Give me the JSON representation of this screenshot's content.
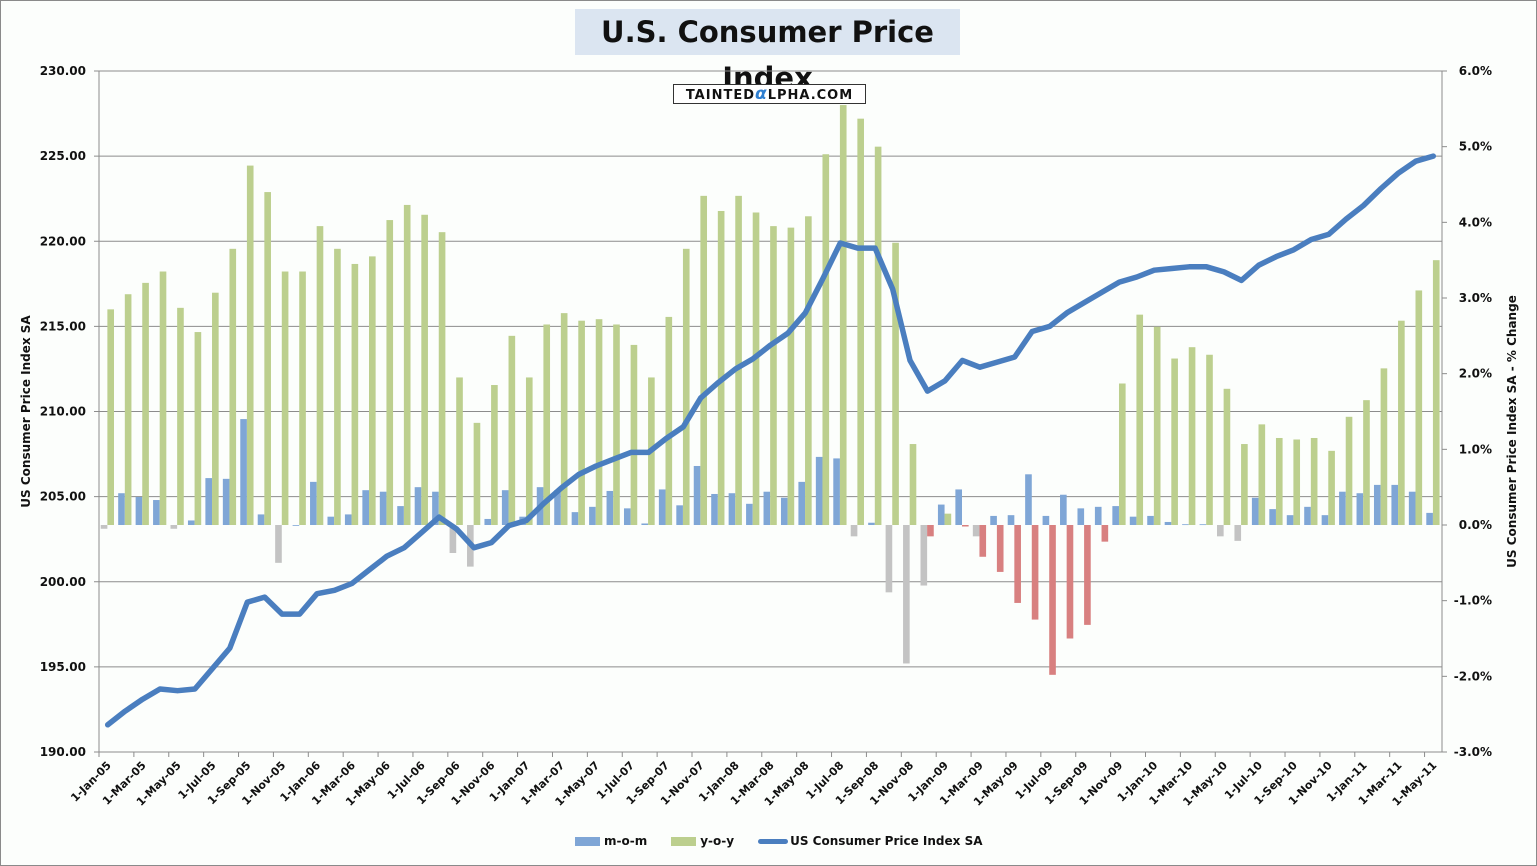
{
  "chart_data": {
    "type": "bar+line",
    "title": "U.S. Consumer Price Index",
    "watermark": "TAINTEDαLPHA.COM",
    "ylabel_left": "US Consumer Price Index SA",
    "ylabel_right": "US Consumer Price Index SA - % Change",
    "ylim_left": [
      190,
      230
    ],
    "ylim_right": [
      -3.0,
      6.0
    ],
    "left_ticks": [
      "190.00",
      "195.00",
      "200.00",
      "205.00",
      "210.00",
      "215.00",
      "220.00",
      "225.00",
      "230.00"
    ],
    "left_tick_values": [
      190,
      195,
      200,
      205,
      210,
      215,
      220,
      225,
      230
    ],
    "right_ticks": [
      "-3.0%",
      "-2.0%",
      "-1.0%",
      "0.0%",
      "1.0%",
      "2.0%",
      "3.0%",
      "4.0%",
      "5.0%",
      "6.0%"
    ],
    "right_tick_values": [
      -3,
      -2,
      -1,
      0,
      1,
      2,
      3,
      4,
      5,
      6
    ],
    "grid": true,
    "legend_position": "bottom",
    "x_tick_labels": [
      "1-Jan-05",
      "1-Mar-05",
      "1-May-05",
      "1-Jul-05",
      "1-Sep-05",
      "1-Nov-05",
      "1-Jan-06",
      "1-Mar-06",
      "1-May-06",
      "1-Jul-06",
      "1-Sep-06",
      "1-Nov-06",
      "1-Jan-07",
      "1-Mar-07",
      "1-May-07",
      "1-Jul-07",
      "1-Sep-07",
      "1-Nov-07",
      "1-Jan-08",
      "1-Mar-08",
      "1-May-08",
      "1-Jul-08",
      "1-Sep-08",
      "1-Nov-08",
      "1-Jan-09",
      "1-Mar-09",
      "1-May-09",
      "1-Jul-09",
      "1-Sep-09",
      "1-Nov-09",
      "1-Jan-10",
      "1-Mar-10",
      "1-May-10",
      "1-Jul-10",
      "1-Sep-10",
      "1-Nov-10",
      "1-Jan-11",
      "1-Mar-11",
      "1-May-11"
    ],
    "months_count": 77,
    "colors": {
      "mom_pos": "#7fa6d6",
      "mom_neg": "#c3c3c3",
      "yoy_pos": "#bccf8e",
      "yoy_neg": "#d88080",
      "line": "#4a7ebf",
      "grid": "#8c8c8c"
    },
    "series": [
      {
        "name": "m-o-m",
        "axis": "right",
        "type": "bar",
        "values": [
          -0.05,
          0.42,
          0.37,
          0.33,
          -0.05,
          0.06,
          0.62,
          0.61,
          1.4,
          0.14,
          -0.5,
          0.0,
          0.57,
          0.11,
          0.14,
          0.46,
          0.44,
          0.25,
          0.5,
          0.44,
          -0.37,
          -0.55,
          0.08,
          0.46,
          0.11,
          0.5,
          0.46,
          0.17,
          0.24,
          0.45,
          0.22,
          0.02,
          0.47,
          0.26,
          0.78,
          0.41,
          0.42,
          0.28,
          0.44,
          0.36,
          0.57,
          0.9,
          0.88,
          -0.15,
          0.03,
          -0.89,
          -1.83,
          -0.8,
          0.27,
          0.47,
          -0.15,
          0.12,
          0.13,
          0.67,
          0.12,
          0.4,
          0.22,
          0.24,
          0.25,
          0.11,
          0.12,
          0.04,
          0.01,
          0.01,
          -0.15,
          -0.21,
          0.36,
          0.21,
          0.13,
          0.24,
          0.13,
          0.44,
          0.42,
          0.53,
          0.53,
          0.44,
          0.16
        ]
      },
      {
        "name": "y-o-y",
        "axis": "right",
        "type": "bar",
        "values": [
          2.85,
          3.05,
          3.2,
          3.35,
          2.87,
          2.55,
          3.07,
          3.65,
          4.75,
          4.4,
          3.35,
          3.35,
          3.95,
          3.65,
          3.45,
          3.55,
          4.03,
          4.23,
          4.1,
          3.87,
          1.95,
          1.35,
          1.85,
          2.5,
          1.95,
          2.65,
          2.8,
          2.7,
          2.72,
          2.65,
          2.38,
          1.95,
          2.75,
          3.65,
          4.35,
          4.15,
          4.35,
          4.13,
          3.95,
          3.93,
          4.08,
          4.9,
          5.55,
          5.37,
          5.0,
          3.73,
          1.07,
          -0.15,
          0.15,
          -0.02,
          -0.42,
          -0.62,
          -1.03,
          -1.25,
          -1.98,
          -1.5,
          -1.32,
          -0.22,
          1.87,
          2.78,
          2.62,
          2.2,
          2.35,
          2.25,
          1.8,
          1.07,
          1.33,
          1.15,
          1.13,
          1.15,
          0.98,
          1.43,
          1.65,
          2.07,
          2.7,
          3.1,
          3.5
        ]
      },
      {
        "name": "US Consumer Price Index SA",
        "axis": "left",
        "type": "line",
        "values": [
          191.6,
          192.4,
          193.1,
          193.7,
          193.6,
          193.7,
          194.9,
          196.1,
          198.8,
          199.1,
          198.1,
          198.1,
          199.3,
          199.5,
          199.9,
          200.7,
          201.5,
          202.0,
          202.9,
          203.8,
          203.1,
          202.0,
          202.3,
          203.3,
          203.6,
          204.6,
          205.5,
          206.3,
          206.8,
          207.2,
          207.6,
          207.6,
          208.4,
          209.1,
          210.8,
          211.7,
          212.5,
          213.1,
          213.9,
          214.6,
          215.8,
          217.8,
          219.9,
          219.6,
          219.6,
          217.2,
          213.0,
          211.2,
          211.8,
          213.0,
          212.6,
          212.9,
          213.2,
          214.7,
          215.0,
          215.8,
          216.4,
          217.0,
          217.6,
          217.9,
          218.3,
          218.4,
          218.5,
          218.5,
          218.2,
          217.7,
          218.6,
          219.1,
          219.5,
          220.1,
          220.4,
          221.3,
          222.1,
          223.1,
          224.0,
          224.7,
          225.0
        ]
      }
    ]
  },
  "legend": {
    "mom_label": "m-o-m",
    "yoy_label": "y-o-y",
    "line_label": "US Consumer Price Index SA"
  }
}
